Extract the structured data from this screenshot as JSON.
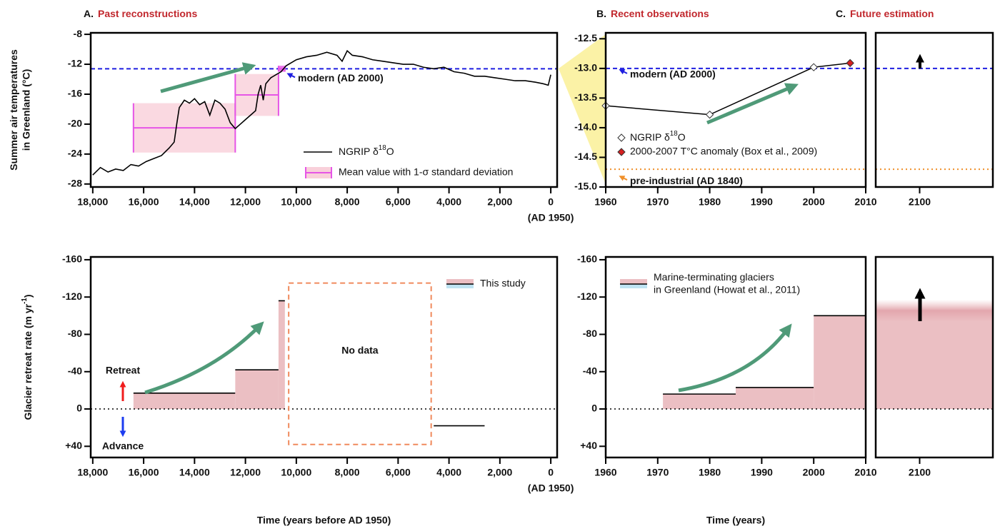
{
  "chart_data": [
    {
      "type": "line",
      "panel": "A.",
      "title": "Past reconstructions",
      "ylabel": [
        "Summer air temperatures",
        "in Greenland (°C)"
      ],
      "x_note": "(AD 1950)",
      "xlim": [
        18080,
        -250
      ],
      "ylim": [
        -7.8,
        -28.4
      ],
      "xticks": [
        {
          "value": 18000,
          "label": "18,000"
        },
        {
          "value": 16000,
          "label": "16,000"
        },
        {
          "value": 14000,
          "label": "14,000"
        },
        {
          "value": 12000,
          "label": "12,000"
        },
        {
          "value": 10000,
          "label": "10,000"
        },
        {
          "value": 8000,
          "label": "8,000"
        },
        {
          "value": 6000,
          "label": "6,000"
        },
        {
          "value": 4000,
          "label": "4,000"
        },
        {
          "value": 2000,
          "label": "2,000"
        },
        0
      ],
      "yticks": [
        -8,
        -12,
        -16,
        -20,
        -24,
        -28
      ],
      "series": [
        {
          "name": {
            "text": "NGRIP δ",
            "sup": "18",
            "tail": "O"
          },
          "color": "#000000",
          "x": [
            18000,
            17700,
            17400,
            17100,
            16800,
            16500,
            16200,
            15900,
            15600,
            15300,
            15000,
            14800,
            14700,
            14600,
            14400,
            14200,
            14000,
            13800,
            13600,
            13400,
            13200,
            13000,
            12800,
            12600,
            12400,
            12200,
            12000,
            11800,
            11600,
            11500,
            11400,
            11300,
            11200,
            11000,
            10800,
            10600,
            10400,
            10000,
            9600,
            9200,
            8800,
            8400,
            8200,
            8000,
            7800,
            7400,
            7000,
            6600,
            6200,
            5800,
            5400,
            5000,
            4600,
            4200,
            3800,
            3400,
            3000,
            2600,
            2200,
            1800,
            1400,
            1000,
            600,
            300,
            100,
            0
          ],
          "values": [
            -26.8,
            -25.8,
            -26.4,
            -26.0,
            -26.2,
            -25.4,
            -25.6,
            -25.0,
            -24.6,
            -24.2,
            -23.2,
            -22.4,
            -20.0,
            -17.8,
            -16.8,
            -17.2,
            -16.6,
            -17.4,
            -17.0,
            -18.8,
            -16.8,
            -17.2,
            -18.0,
            -19.8,
            -20.6,
            -20.0,
            -19.4,
            -18.8,
            -18.2,
            -16.0,
            -14.8,
            -16.8,
            -14.6,
            -13.8,
            -13.4,
            -13.0,
            -12.2,
            -11.4,
            -11.0,
            -10.8,
            -10.4,
            -10.8,
            -11.6,
            -10.2,
            -10.8,
            -11.0,
            -11.4,
            -11.6,
            -11.8,
            -12.0,
            -12.0,
            -12.4,
            -12.6,
            -12.4,
            -13.0,
            -13.2,
            -13.6,
            -13.6,
            -13.8,
            -14.0,
            -14.2,
            -14.2,
            -14.4,
            -14.6,
            -14.8,
            -13.4
          ]
        }
      ],
      "ranges": {
        "name": "Mean value with 1-σ standard deviation",
        "color": "#e655e6",
        "fill": "#f9d0da",
        "items": [
          {
            "x": [
              16400,
              12400
            ],
            "mean": -20.5,
            "sd": 3.3
          },
          {
            "x": [
              12400,
              10700
            ],
            "mean": -16.1,
            "sd": 2.8
          },
          {
            "x": [
              10700,
              10450
            ],
            "mean": -12.6,
            "sd": 0.4
          }
        ]
      },
      "hlines": [
        {
          "label": "modern (AD 2000)",
          "value": -12.6,
          "color": "#1f1fe0",
          "style": "dashed"
        }
      ]
    },
    {
      "type": "line",
      "panel": "B.",
      "title": "Recent observations",
      "xlim": [
        1960,
        2010
      ],
      "ylim": [
        -12.4,
        -15.0
      ],
      "xticks": [
        1960,
        1970,
        1980,
        1990,
        2000,
        2010
      ],
      "yticks": [
        -12.5,
        {
          "value": -13,
          "label": "-13.0"
        },
        -13.5,
        {
          "value": -14,
          "label": "-14.0"
        },
        -14.5,
        {
          "value": -15,
          "label": "-15.0"
        }
      ],
      "connected": true,
      "series": [
        {
          "name": {
            "text": "NGRIP δ",
            "sup": "18",
            "tail": "O"
          },
          "color": "#ffffff",
          "marker": "diamond",
          "x": [
            1960,
            1980,
            2000
          ],
          "values": [
            -13.63,
            -13.78,
            -12.98
          ]
        },
        {
          "name": "2000-2007 T°C anomaly (Box et al., 2009)",
          "color": "#d62020",
          "marker": "diamond",
          "x": [
            2007
          ],
          "values": [
            -12.91
          ]
        }
      ],
      "hlines": [
        {
          "label": "modern (AD 2000)",
          "value": -13.0,
          "color": "#1f1fe0",
          "style": "dashed"
        },
        {
          "label": "pre-industrial (AD 1840)",
          "value": -14.7,
          "color": "#f0902a",
          "style": "dotted"
        }
      ]
    },
    {
      "type": "line",
      "panel": "C.",
      "title": "Future estimation",
      "xlim": [
        2070,
        2150
      ],
      "ylim": [
        -12.4,
        -15.0
      ],
      "xticks": [
        2100
      ],
      "series": [],
      "hlines": [
        {
          "value": -13.0,
          "color": "#1f1fe0",
          "style": "dashed"
        },
        {
          "value": -14.7,
          "color": "#f0902a",
          "style": "dotted"
        }
      ]
    },
    {
      "type": "bar",
      "ylabel": {
        "text": "Glacier retreat rate (m yr",
        "sup": "-1",
        "tail": ")"
      },
      "xlabel": "Time (years before AD 1950)",
      "x_note": "(AD 1950)",
      "xlim": [
        18080,
        -250
      ],
      "ylim": [
        -163,
        52
      ],
      "xticks": [
        {
          "value": 18000,
          "label": "18,000"
        },
        {
          "value": 16000,
          "label": "16,000"
        },
        {
          "value": 14000,
          "label": "14,000"
        },
        {
          "value": 12000,
          "label": "12,000"
        },
        {
          "value": 10000,
          "label": "10,000"
        },
        {
          "value": 8000,
          "label": "8,000"
        },
        {
          "value": 6000,
          "label": "6,000"
        },
        {
          "value": 4000,
          "label": "4,000"
        },
        {
          "value": 2000,
          "label": "2,000"
        },
        0
      ],
      "yticks": [
        -160,
        -120,
        -80,
        -40,
        0,
        {
          "value": 40,
          "label": "+40"
        }
      ],
      "colors": {
        "retreat": "#ebbfc3",
        "advance": "#bfe3f2"
      },
      "bars": {
        "name": "This study",
        "x": [
          [
            16400,
            12400
          ],
          [
            12400,
            10700
          ],
          [
            10700,
            10450
          ],
          [
            4600,
            2600
          ]
        ],
        "values": [
          -17,
          -42,
          -116,
          18
        ]
      },
      "annotations": {
        "retreat": "Retreat",
        "advance": "Advance"
      },
      "no_data": {
        "label": "No data",
        "x": [
          10300,
          4700
        ],
        "y": [
          -135,
          38
        ],
        "color": "#f08a5d"
      }
    },
    {
      "type": "bar",
      "xlabel": "Time (years)",
      "xlim": [
        1960,
        2010
      ],
      "ylim": [
        -163,
        52
      ],
      "xticks": [
        1960,
        1970,
        1980,
        1990,
        2000,
        2010
      ],
      "yticks": [
        -160,
        -120,
        -80,
        -40,
        0,
        {
          "value": 40,
          "label": "+40"
        }
      ],
      "colors": {
        "retreat": "#ebbfc3",
        "advance": "#bfe3f2"
      },
      "bars": {
        "name": [
          "Marine-terminating glaciers",
          "in Greenland (Howat et al., 2011)"
        ],
        "x": [
          [
            1971,
            1985
          ],
          [
            1985,
            2000
          ],
          [
            2000,
            2010
          ]
        ],
        "values": [
          -16,
          -23,
          -100
        ]
      }
    },
    {
      "type": "bar",
      "xlim": [
        2070,
        2150
      ],
      "ylim": [
        -163,
        52
      ],
      "xticks": [
        2100
      ],
      "colors": {
        "retreat": "#ebbfc3",
        "advance": "#bfe3f2"
      },
      "fade": true,
      "bars": {
        "x": [
          [
            2070,
            2150
          ]
        ],
        "values": [
          -105
        ]
      }
    }
  ]
}
